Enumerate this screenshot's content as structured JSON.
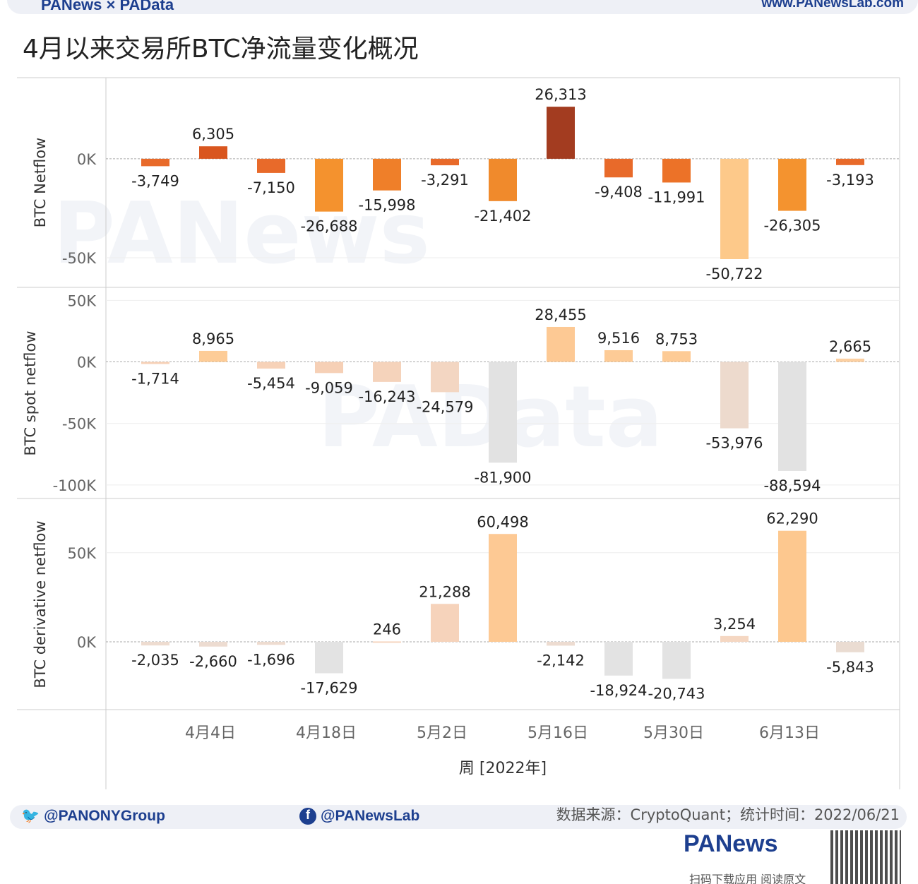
{
  "header": {
    "brand": "PANews × PAData",
    "url": "www.PANewsLab.com",
    "title": "4月以来交易所BTC净流量变化概况"
  },
  "footer": {
    "twitter": "@PANONYGroup",
    "facebook": "@PANewsLab",
    "source": "数据来源：CryptoQuant；统计时间：2022/06/21",
    "logo": "PANews",
    "scan": "扫码下载应用 阅读原文"
  },
  "watermarks": [
    "PANews",
    "PAData"
  ],
  "chart_data": {
    "type": "bar",
    "xlabel": "周 [2022年]",
    "x_tick_labels": [
      {
        "index": 1,
        "label": "4月4日"
      },
      {
        "index": 3,
        "label": "4月18日"
      },
      {
        "index": 5,
        "label": "5月2日"
      },
      {
        "index": 7,
        "label": "5月16日"
      },
      {
        "index": 9,
        "label": "5月30日"
      },
      {
        "index": 11,
        "label": "6月13日"
      }
    ],
    "grid": true,
    "panels": [
      {
        "ylabel": "BTC Netflow",
        "ylim": [
          -65000,
          41000
        ],
        "yticks": [
          {
            "v": 0,
            "label": "0K"
          },
          {
            "v": -50000,
            "label": "-50K"
          }
        ],
        "values": [
          -3749,
          6305,
          -7150,
          -26688,
          -15998,
          -3291,
          -21402,
          26313,
          -9408,
          -11991,
          -50722,
          -26305,
          -3193
        ],
        "labels": [
          "-3,749",
          "6,305",
          "-7,150",
          "-26,688",
          "-15,998",
          "-3,291",
          "-21,402",
          "26,313",
          "-9,408",
          "-11,991",
          "-50,722",
          "-26,305",
          "-3,193"
        ],
        "colors": [
          "#e86a2a",
          "#d9561f",
          "#e86a2a",
          "#f4922e",
          "#ef7f29",
          "#e86a2a",
          "#f08a2c",
          "#a33c20",
          "#e86a2a",
          "#ec7228",
          "#fdc98a",
          "#f4932f",
          "#e86a2a"
        ]
      },
      {
        "ylabel": "BTC spot netflow",
        "ylim": [
          -111000,
          60000
        ],
        "yticks": [
          {
            "v": 50000,
            "label": "50K"
          },
          {
            "v": 0,
            "label": "0K"
          },
          {
            "v": -50000,
            "label": "-50K"
          },
          {
            "v": -100000,
            "label": "-100K"
          }
        ],
        "values": [
          -1714,
          8965,
          -5454,
          -9059,
          -16243,
          -24579,
          -81900,
          28455,
          9516,
          8753,
          -53976,
          -88594,
          2665
        ],
        "labels": [
          "-1,714",
          "8,965",
          "-5,454",
          "-9,059",
          "-16,243",
          "-24,579",
          "-81,900",
          "28,455",
          "9,516",
          "8,753",
          "-53,976",
          "-88,594",
          "2,665"
        ],
        "colors": [
          "#f7d2b8",
          "#fdcc97",
          "#f7d2b8",
          "#f6d0b6",
          "#f5d3bb",
          "#f3d6c2",
          "#e2e2e2",
          "#fdc994",
          "#fdcb96",
          "#fdcb96",
          "#eddacd",
          "#e2e2e2",
          "#fcd0a2"
        ]
      },
      {
        "ylabel": "BTC derivative netflow",
        "ylim": [
          -38000,
          80000
        ],
        "yticks": [
          {
            "v": 50000,
            "label": "50K"
          },
          {
            "v": 0,
            "label": "0K"
          }
        ],
        "values": [
          -2035,
          -2660,
          -1696,
          -17629,
          246,
          21288,
          60498,
          -2142,
          -18924,
          -20743,
          3254,
          62290,
          -5843
        ],
        "labels": [
          "-2,035",
          "-2,660",
          "-1,696",
          "-17,629",
          "246",
          "21,288",
          "60,498",
          "-2,142",
          "-18,924",
          "-20,743",
          "3,254",
          "62,290",
          "-5,843"
        ],
        "colors": [
          "#eedcd0",
          "#eddcd1",
          "#eedcd0",
          "#e3e3e3",
          "#f6d6c0",
          "#f6d3bb",
          "#fdc994",
          "#eddcd1",
          "#e3e3e3",
          "#e3e3e3",
          "#f5d7c2",
          "#fdc88f",
          "#eadcd2"
        ]
      }
    ]
  }
}
